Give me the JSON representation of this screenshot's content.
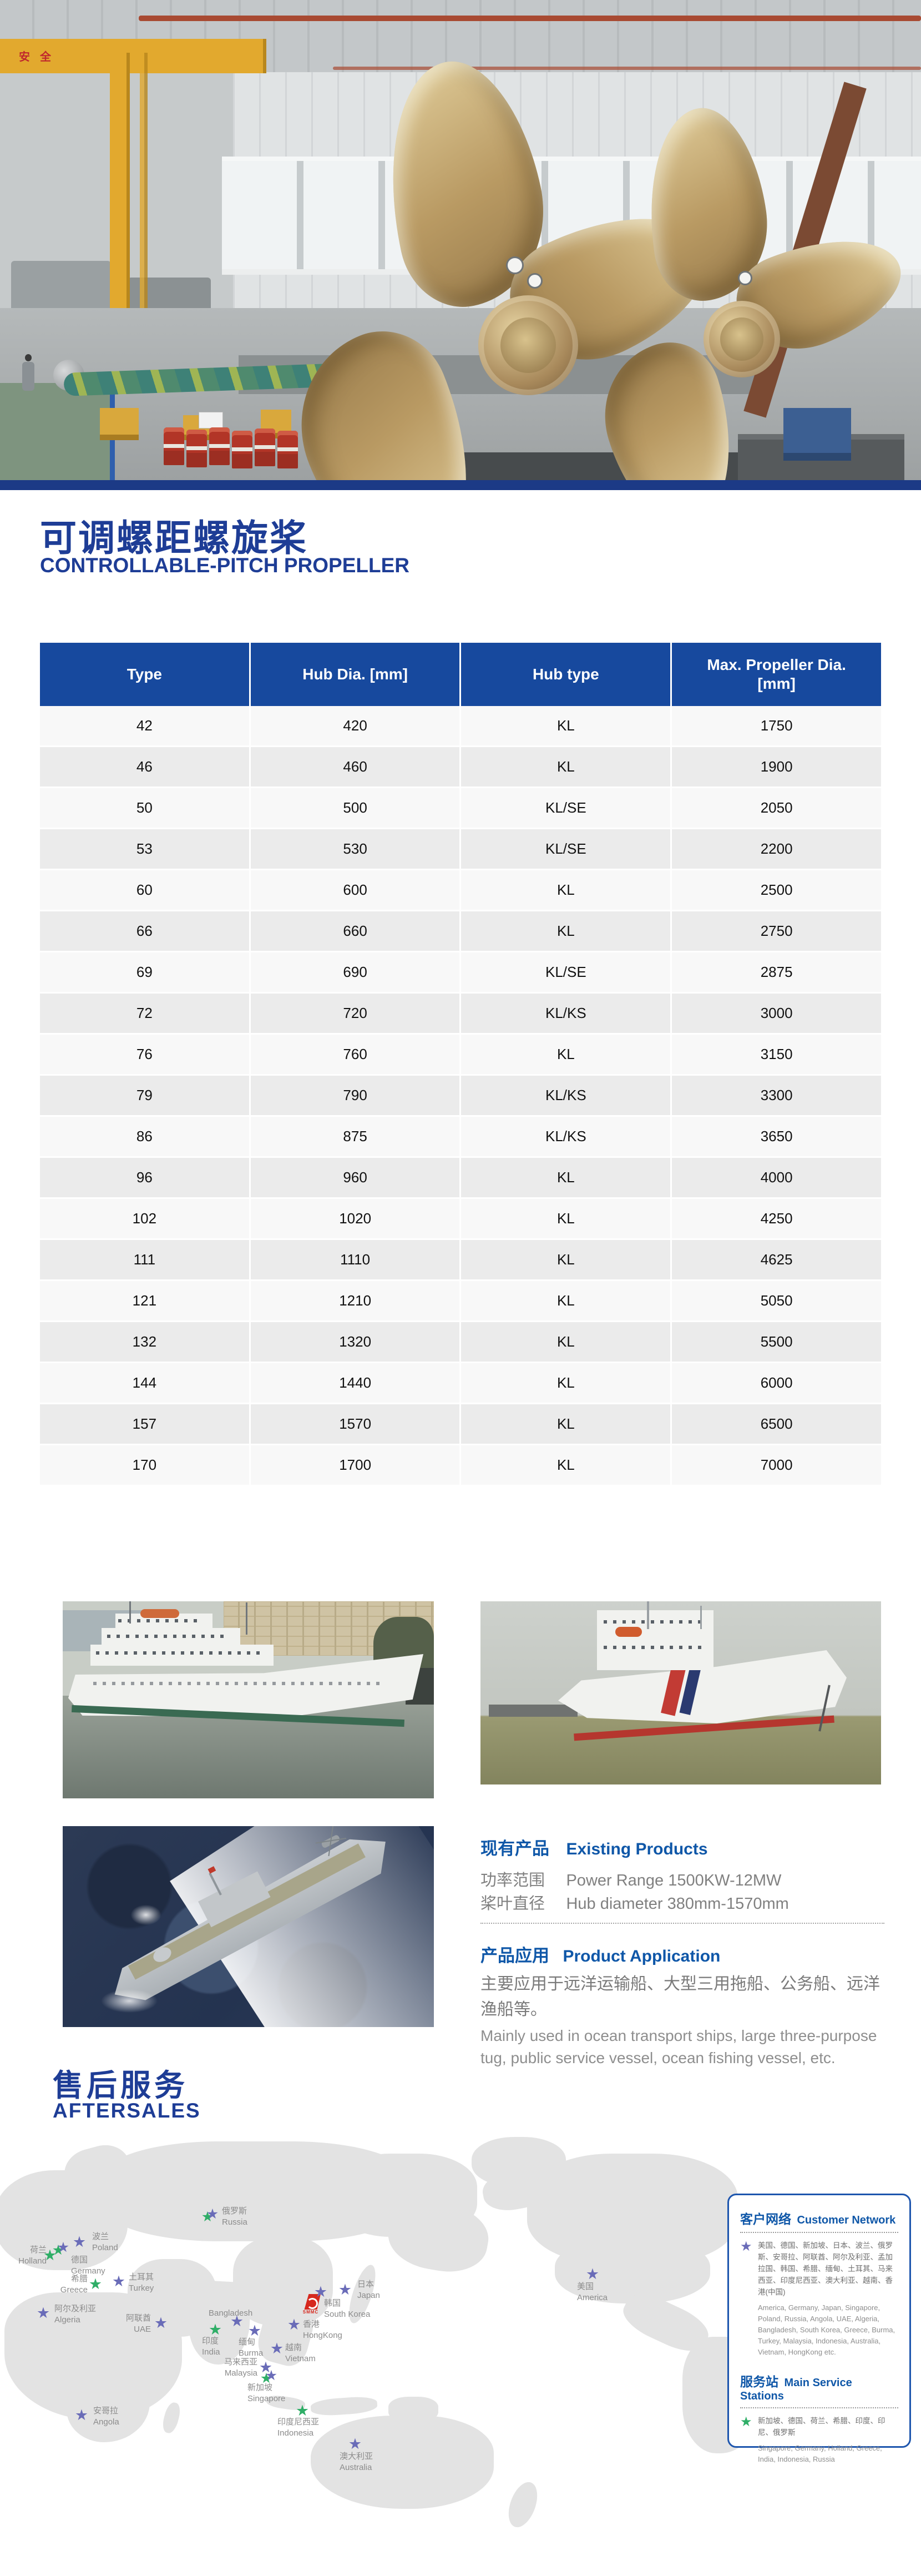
{
  "titles": {
    "main_cn": "可调螺距螺旋桨",
    "main_en": "CONTROLLABLE-PITCH PROPELLER"
  },
  "hero": {
    "crane_sign": "安全"
  },
  "table": {
    "headers": [
      "Type",
      "Hub Dia. [mm]",
      "Hub type",
      "Max. Propeller  Dia. [mm]"
    ],
    "rows": [
      [
        "42",
        "420",
        "KL",
        "1750"
      ],
      [
        "46",
        "460",
        "KL",
        "1900"
      ],
      [
        "50",
        "500",
        "KL/SE",
        "2050"
      ],
      [
        "53",
        "530",
        "KL/SE",
        "2200"
      ],
      [
        "60",
        "600",
        "KL",
        "2500"
      ],
      [
        "66",
        "660",
        "KL",
        "2750"
      ],
      [
        "69",
        "690",
        "KL/SE",
        "2875"
      ],
      [
        "72",
        "720",
        "KL/KS",
        "3000"
      ],
      [
        "76",
        "760",
        "KL",
        "3150"
      ],
      [
        "79",
        "790",
        "KL/KS",
        "3300"
      ],
      [
        "86",
        "875",
        "KL/KS",
        "3650"
      ],
      [
        "96",
        "960",
        "KL",
        "4000"
      ],
      [
        "102",
        "1020",
        "KL",
        "4250"
      ],
      [
        "111",
        "1110",
        "KL",
        "4625"
      ],
      [
        "121",
        "1210",
        "KL",
        "5050"
      ],
      [
        "132",
        "1320",
        "KL",
        "5500"
      ],
      [
        "144",
        "1440",
        "KL",
        "6000"
      ],
      [
        "157",
        "1570",
        "KL",
        "6500"
      ],
      [
        "170",
        "1700",
        "KL",
        "7000"
      ]
    ]
  },
  "existing_products": {
    "heading_cn": "现有产品",
    "heading_en": "Existing Products",
    "specs": [
      {
        "label_cn": "功率范围",
        "value_en": "Power Range 1500KW-12MW"
      },
      {
        "label_cn": "桨叶直径",
        "value_en": "Hub diameter 380mm-1570mm"
      }
    ]
  },
  "product_application": {
    "heading_cn": "产品应用",
    "heading_en": "Product Application",
    "text_cn": "主要应用于远洋运输船、大型三用拖船、公务船、远洋渔船等。",
    "text_en": "Mainly used in ocean transport ships, large three-purpose tug, public service vessel, ocean fishing vessel, etc."
  },
  "aftersales": {
    "title_cn": "售后服务",
    "title_en": "AFTERSALES"
  },
  "map": {
    "logo": "SMMC",
    "stations": [
      {
        "id": "russia",
        "cn": "俄罗斯",
        "en": "Russia",
        "type": "both",
        "star": [
          380,
          142
        ],
        "label": [
          400,
          124,
          "left"
        ]
      },
      {
        "id": "america",
        "cn": "美国",
        "en": "America",
        "type": "customer",
        "star": [
          1068,
          248
        ],
        "label": [
          1040,
          260,
          "left"
        ]
      },
      {
        "id": "poland",
        "cn": "波兰",
        "en": "Poland",
        "type": "customer",
        "star": [
          143,
          190
        ],
        "label": [
          166,
          170,
          "left"
        ]
      },
      {
        "id": "germany",
        "cn": "德国",
        "en": "Germany",
        "type": "both",
        "star": [
          111,
          202
        ],
        "label": [
          128,
          212,
          "left"
        ]
      },
      {
        "id": "holland",
        "cn": "荷兰",
        "en": "Holland",
        "type": "service",
        "star": [
          90,
          214
        ],
        "label": [
          84,
          194,
          "right"
        ]
      },
      {
        "id": "greece",
        "cn": "希腊",
        "en": "Greece",
        "type": "service",
        "star": [
          172,
          266
        ],
        "label": [
          158,
          246,
          "right"
        ]
      },
      {
        "id": "turkey",
        "cn": "土耳其",
        "en": "Turkey",
        "type": "customer",
        "star": [
          214,
          261
        ],
        "label": [
          232,
          243,
          "left"
        ]
      },
      {
        "id": "algeria",
        "cn": "阿尔及利亚",
        "en": "Algeria",
        "type": "customer",
        "star": [
          78,
          318
        ],
        "label": [
          98,
          300,
          "left"
        ]
      },
      {
        "id": "uae",
        "cn": "阿联酋",
        "en": "UAE",
        "type": "customer",
        "star": [
          290,
          336
        ],
        "label": [
          272,
          317,
          "right"
        ]
      },
      {
        "id": "angola",
        "cn": "安哥拉",
        "en": "Angola",
        "type": "customer",
        "star": [
          147,
          502
        ],
        "label": [
          168,
          484,
          "left"
        ]
      },
      {
        "id": "bangladesh",
        "cn": "",
        "en": "Bangladesh",
        "type": "customer",
        "star": [
          427,
          333
        ],
        "label": [
          376,
          308,
          "left"
        ]
      },
      {
        "id": "india",
        "cn": "印度",
        "en": "India",
        "type": "service",
        "star": [
          388,
          348
        ],
        "label": [
          364,
          358,
          "left"
        ]
      },
      {
        "id": "burma",
        "cn": "缅甸",
        "en": "Burma",
        "type": "customer",
        "star": [
          459,
          350
        ],
        "label": [
          430,
          360,
          "left"
        ]
      },
      {
        "id": "south-korea",
        "cn": "韩国",
        "en": "South Korea",
        "type": "customer",
        "star": [
          578,
          280
        ],
        "label": [
          584,
          290,
          "left"
        ]
      },
      {
        "id": "japan",
        "cn": "日本",
        "en": "Japan",
        "type": "customer",
        "star": [
          622,
          276
        ],
        "label": [
          644,
          256,
          "left"
        ]
      },
      {
        "id": "hongkong",
        "cn": "香港",
        "en": "HongKong",
        "type": "customer",
        "star": [
          530,
          339
        ],
        "label": [
          546,
          328,
          "left"
        ]
      },
      {
        "id": "vietnam",
        "cn": "越南",
        "en": "Vietnam",
        "type": "customer",
        "star": [
          499,
          382
        ],
        "label": [
          514,
          370,
          "left"
        ]
      },
      {
        "id": "malaysia",
        "cn": "马来西亚",
        "en": "Malaysia",
        "type": "customer",
        "star": [
          479,
          416
        ],
        "label": [
          464,
          396,
          "right"
        ]
      },
      {
        "id": "singapore",
        "cn": "新加坡",
        "en": "Singapore",
        "type": "both",
        "star": [
          486,
          433
        ],
        "label": [
          446,
          442,
          "left"
        ]
      },
      {
        "id": "indonesia",
        "cn": "印度尼西亚",
        "en": "Indonesia",
        "type": "service",
        "star": [
          545,
          494
        ],
        "label": [
          500,
          504,
          "left"
        ]
      },
      {
        "id": "australia",
        "cn": "澳大利亚",
        "en": "Australia",
        "type": "customer",
        "star": [
          640,
          554
        ],
        "label": [
          612,
          566,
          "left"
        ]
      }
    ]
  },
  "panel": {
    "customer_network": {
      "heading_cn": "客户网络",
      "heading_en": "Customer Network",
      "list_cn": "美国、德国、新加坡、日本、波兰、俄罗斯、安哥拉、阿联酋、阿尔及利亚、孟加拉国、韩国、希腊、缅甸、土耳其、马来西亚、印度尼西亚、澳大利亚、越南、香港(中国)",
      "list_en": "America, Germany, Japan, Singapore, Poland, Russia, Angola, UAE, Algeria, Bangladesh, South Korea, Greece, Burma, Turkey, Malaysia, Indonesia, Australia, Vietnam, HongKong etc."
    },
    "service_stations": {
      "heading_cn": "服务站",
      "heading_en": "Main Service Stations",
      "list_cn": "新加坡、德国、荷兰、希腊、印度、印尼、俄罗斯",
      "list_en": "Singapore, Germany, Holland, Greece, India, Indonesia, Russia"
    }
  },
  "colors": {
    "navy_title": "#1e3d96",
    "table_header": "#17499e",
    "section_blue": "#0f57a8",
    "customer_star": "#6a6cb8",
    "service_star": "#2fae67",
    "panel_border": "#1e56ae",
    "logo_red": "#d6281e",
    "land_grey": "#e3e3e3"
  }
}
